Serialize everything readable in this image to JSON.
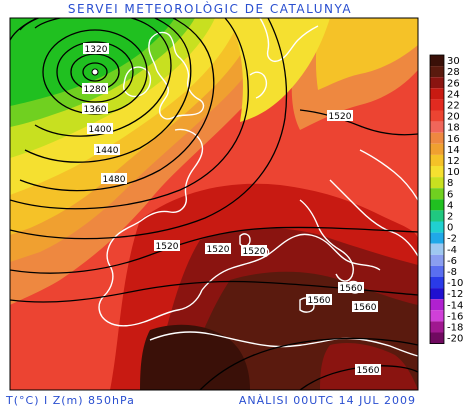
{
  "header": {
    "title": "SERVEI METEOROLÒGIC DE CATALUNYA"
  },
  "footer": {
    "variables": "T(°C) I Z(m) 850hPa",
    "analysis": "ANÀLISI 00UTC 14 JUL 2009"
  },
  "map": {
    "isohypse_labels": [
      "1320",
      "1280",
      "1360",
      "1400",
      "1440",
      "1480",
      "1520",
      "1520",
      "1520",
      "1520",
      "1560",
      "1560",
      "1560",
      "1560"
    ]
  },
  "legend": {
    "levels": [
      {
        "label": "30",
        "color": "#3a1008"
      },
      {
        "label": "28",
        "color": "#5a1a0e"
      },
      {
        "label": "26",
        "color": "#8a1410"
      },
      {
        "label": "24",
        "color": "#c81a12"
      },
      {
        "label": "22",
        "color": "#e22a20"
      },
      {
        "label": "20",
        "color": "#ec4432"
      },
      {
        "label": "18",
        "color": "#f0665a"
      },
      {
        "label": "16",
        "color": "#ee8840"
      },
      {
        "label": "14",
        "color": "#f0a030"
      },
      {
        "label": "12",
        "color": "#f5c228"
      },
      {
        "label": "10",
        "color": "#f5e030"
      },
      {
        "label": "8",
        "color": "#c8e020"
      },
      {
        "label": "6",
        "color": "#70d020"
      },
      {
        "label": "4",
        "color": "#20c020"
      },
      {
        "label": "2",
        "color": "#20c880"
      },
      {
        "label": "0",
        "color": "#20d0d0"
      },
      {
        "label": "-2",
        "color": "#20a8e8"
      },
      {
        "label": "-4",
        "color": "#9ec8f0"
      },
      {
        "label": "-6",
        "color": "#8a9ef0"
      },
      {
        "label": "-8",
        "color": "#5a6ef0"
      },
      {
        "label": "-10",
        "color": "#2a3ae8"
      },
      {
        "label": "-12",
        "color": "#2010d0"
      },
      {
        "label": "-14",
        "color": "#b020d0"
      },
      {
        "label": "-16",
        "color": "#d040d8"
      },
      {
        "label": "-18",
        "color": "#a01890"
      },
      {
        "label": "-20",
        "color": "#700a60"
      }
    ]
  }
}
